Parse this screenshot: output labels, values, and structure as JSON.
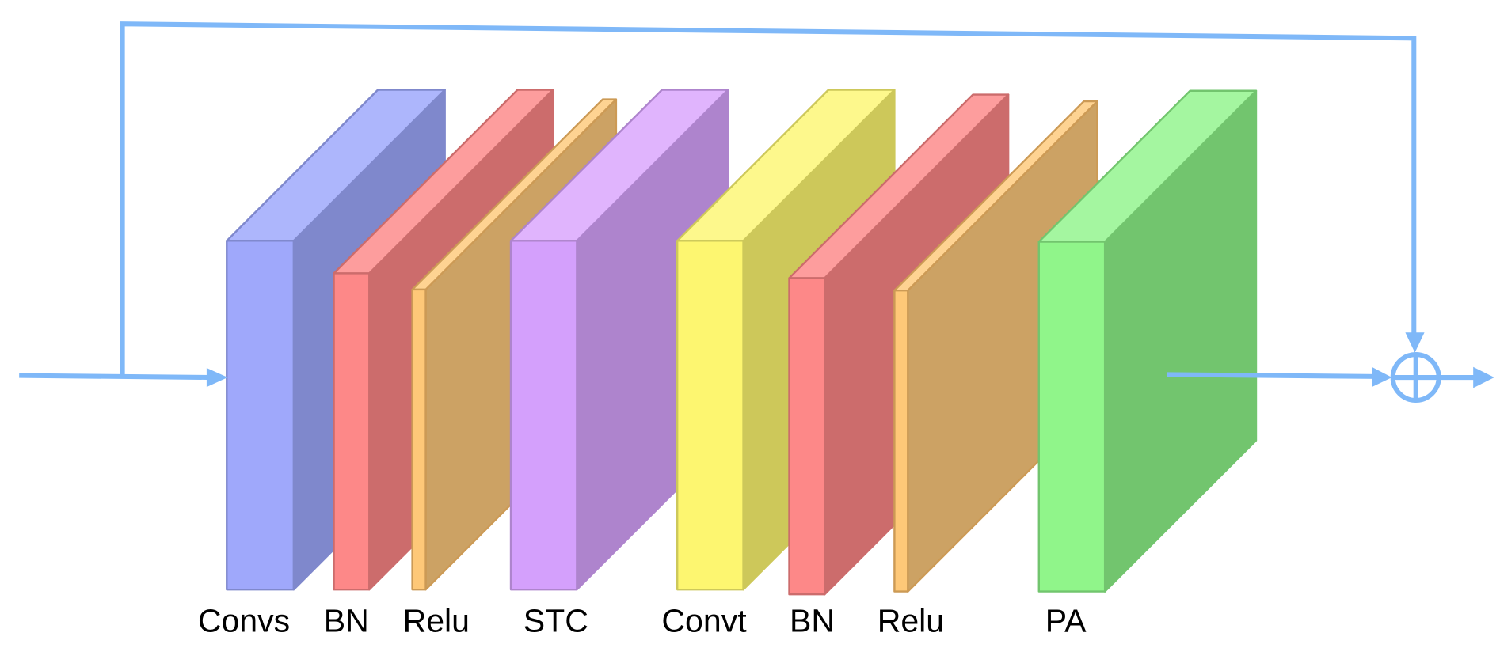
{
  "blocks": [
    {
      "label": "Convs"
    },
    {
      "label": "BN"
    },
    {
      "label": "Relu"
    },
    {
      "label": "STC"
    },
    {
      "label": "Convt"
    },
    {
      "label": "BN"
    },
    {
      "label": "Relu"
    },
    {
      "label": "PA"
    }
  ]
}
